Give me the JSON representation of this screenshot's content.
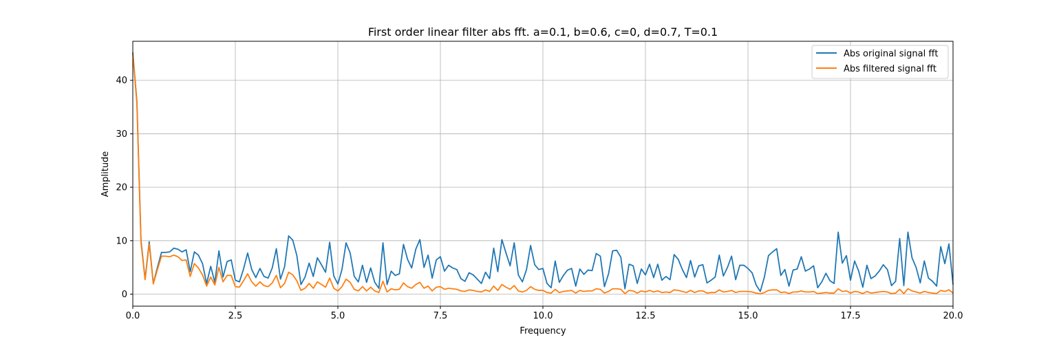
{
  "chart_data": {
    "type": "line",
    "title": "First order linear filter abs fft. a=0.1, b=0.6, c=0, d=0.7, T=0.1",
    "xlabel": "Frequency",
    "ylabel": "Amplitude",
    "xlim": [
      0,
      20
    ],
    "ylim": [
      -2.25,
      47.3
    ],
    "grid": true,
    "legend_position": "top-right",
    "x_ticks": [
      0,
      2.5,
      5,
      7.5,
      10,
      12.5,
      15,
      17.5,
      20
    ],
    "x_tick_labels": [
      "0.0",
      "2.5",
      "5.0",
      "7.5",
      "10.0",
      "12.5",
      "15.0",
      "17.5",
      "20.0"
    ],
    "y_ticks": [
      0,
      10,
      20,
      30,
      40
    ],
    "y_tick_labels": [
      "0",
      "10",
      "20",
      "30",
      "40"
    ],
    "x_start": 0,
    "x_step": 0.1,
    "series": [
      {
        "name": "Abs original signal fft",
        "color": "#1f77b4",
        "values": [
          45.2,
          36.0,
          10.0,
          2.8,
          9.8,
          2.0,
          5.0,
          7.8,
          7.8,
          7.9,
          8.6,
          8.4,
          7.9,
          8.3,
          4.2,
          7.9,
          7.3,
          5.7,
          2.0,
          5.2,
          2.2,
          8.1,
          3.2,
          6.1,
          6.4,
          2.6,
          2.3,
          4.7,
          7.7,
          4.6,
          3.1,
          4.8,
          3.3,
          3.0,
          4.9,
          8.5,
          2.8,
          5.1,
          10.9,
          10.1,
          7.2,
          1.8,
          3.2,
          5.8,
          3.3,
          6.8,
          5.5,
          4.1,
          9.7,
          3.4,
          1.9,
          4.6,
          9.6,
          7.7,
          3.3,
          2.3,
          5.4,
          2.2,
          4.9,
          2.2,
          1.1,
          9.6,
          1.8,
          4.3,
          3.5,
          3.8,
          9.3,
          6.5,
          4.9,
          8.4,
          10.2,
          5.0,
          7.3,
          3.0,
          6.4,
          7.0,
          4.3,
          5.4,
          4.9,
          4.6,
          2.9,
          2.4,
          4.0,
          3.6,
          2.8,
          2.0,
          4.1,
          2.9,
          8.6,
          4.2,
          10.2,
          7.7,
          5.3,
          9.6,
          3.6,
          2.3,
          4.6,
          9.1,
          5.5,
          4.6,
          4.8,
          2.0,
          1.2,
          6.2,
          2.2,
          3.5,
          4.5,
          4.8,
          1.5,
          4.7,
          3.7,
          4.5,
          4.4,
          7.6,
          7.1,
          1.4,
          3.8,
          8.1,
          8.2,
          6.9,
          1.0,
          5.6,
          5.3,
          2.0,
          4.7,
          3.6,
          5.6,
          3.1,
          5.6,
          2.6,
          3.3,
          2.7,
          7.4,
          6.5,
          4.6,
          3.1,
          6.3,
          3.2,
          5.3,
          5.5,
          2.1,
          2.6,
          3.2,
          7.3,
          3.4,
          5.0,
          7.1,
          2.7,
          5.4,
          5.4,
          4.8,
          4.0,
          1.7,
          0.5,
          3.2,
          7.2,
          7.9,
          8.5,
          3.5,
          4.6,
          1.5,
          4.5,
          4.7,
          7.0,
          4.3,
          4.7,
          5.3,
          1.2,
          2.3,
          3.9,
          2.5,
          2.0,
          11.6,
          5.8,
          7.2,
          2.6,
          6.2,
          4.3,
          1.3,
          5.4,
          2.9,
          3.4,
          4.3,
          5.5,
          4.6,
          1.6,
          2.4,
          10.4,
          1.6,
          11.6,
          6.8,
          5.0,
          2.1,
          6.2,
          3.0,
          2.4,
          1.5,
          8.9,
          5.7,
          9.4,
          1.8
        ]
      },
      {
        "name": "Abs filtered signal fft",
        "color": "#ff7f0e",
        "values": [
          45.0,
          35.6,
          9.6,
          2.7,
          9.4,
          1.9,
          4.6,
          7.1,
          7.1,
          7.0,
          7.3,
          7.0,
          6.3,
          6.4,
          3.3,
          5.7,
          4.9,
          3.6,
          1.5,
          3.2,
          1.7,
          5.0,
          2.3,
          3.5,
          3.5,
          1.4,
          1.3,
          2.5,
          3.8,
          2.3,
          1.5,
          2.3,
          1.6,
          1.4,
          2.1,
          3.5,
          1.2,
          2.0,
          4.1,
          3.6,
          2.5,
          0.7,
          1.1,
          2.0,
          1.1,
          2.3,
          1.8,
          1.3,
          3.0,
          1.1,
          0.6,
          1.4,
          2.8,
          2.2,
          0.9,
          0.6,
          1.4,
          0.6,
          1.3,
          0.6,
          0.3,
          2.4,
          0.4,
          1.0,
          0.8,
          0.9,
          2.1,
          1.4,
          1.1,
          1.8,
          2.2,
          1.1,
          1.5,
          0.6,
          1.3,
          1.4,
          0.9,
          1.1,
          1.0,
          0.9,
          0.6,
          0.5,
          0.8,
          0.7,
          0.5,
          0.4,
          0.8,
          0.5,
          1.5,
          0.7,
          1.8,
          1.3,
          0.9,
          1.6,
          0.6,
          0.4,
          0.7,
          1.4,
          0.9,
          0.7,
          0.7,
          0.3,
          0.2,
          0.9,
          0.3,
          0.5,
          0.6,
          0.7,
          0.2,
          0.7,
          0.5,
          0.6,
          0.6,
          1.0,
          0.9,
          0.2,
          0.5,
          1.0,
          1.0,
          0.9,
          0.1,
          0.7,
          0.6,
          0.2,
          0.6,
          0.4,
          0.7,
          0.4,
          0.6,
          0.3,
          0.4,
          0.3,
          0.8,
          0.7,
          0.5,
          0.3,
          0.7,
          0.3,
          0.6,
          0.6,
          0.2,
          0.3,
          0.3,
          0.8,
          0.4,
          0.5,
          0.7,
          0.3,
          0.5,
          0.5,
          0.5,
          0.4,
          0.2,
          0.05,
          0.3,
          0.7,
          0.8,
          0.8,
          0.3,
          0.4,
          0.1,
          0.4,
          0.4,
          0.6,
          0.4,
          0.4,
          0.5,
          0.1,
          0.2,
          0.3,
          0.2,
          0.2,
          1.0,
          0.5,
          0.6,
          0.2,
          0.5,
          0.4,
          0.1,
          0.5,
          0.2,
          0.3,
          0.4,
          0.5,
          0.4,
          0.1,
          0.2,
          0.9,
          0.1,
          1.0,
          0.6,
          0.4,
          0.2,
          0.5,
          0.3,
          0.2,
          0.1,
          0.7,
          0.5,
          0.8,
          0.2
        ]
      }
    ]
  }
}
